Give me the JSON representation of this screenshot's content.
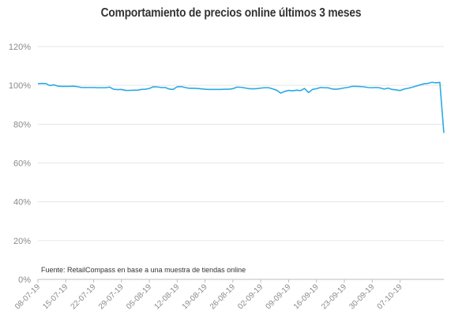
{
  "chart_data": {
    "type": "line",
    "title": "Comportamiento de precios online últimos 3 meses",
    "xlabel": "",
    "ylabel": "",
    "source_note": "Fuente: RetailCompass en base a una muestra de tiendas online",
    "ylim": [
      0,
      120
    ],
    "yticks": [
      "0%",
      "20%",
      "40%",
      "60%",
      "80%",
      "100%",
      "120%"
    ],
    "yticks_values": [
      0,
      20,
      40,
      60,
      80,
      100,
      120
    ],
    "xticks": [
      "08-07-19",
      "15-07-19",
      "22-07-19",
      "29-07-19",
      "05-08-19",
      "12-08-19",
      "19-08-19",
      "26-08-19",
      "02-09-19",
      "09-09-19",
      "16-09-19",
      "23-09-19",
      "30-09-19",
      "07-10-19"
    ],
    "xtick_day_index": [
      0,
      7,
      14,
      21,
      28,
      35,
      42,
      49,
      56,
      63,
      70,
      77,
      84,
      91
    ],
    "grid": true,
    "line_color": "#29abe2",
    "grid_color": "#e6e6e6",
    "axis_color": "#bdbdbd",
    "series": [
      {
        "values": [
          100.8,
          101.0,
          100.9,
          99.9,
          100.3,
          99.6,
          99.5,
          99.5,
          99.5,
          99.6,
          99.3,
          98.9,
          98.9,
          98.9,
          98.9,
          98.8,
          98.8,
          98.8,
          99.1,
          98.0,
          97.8,
          97.9,
          97.4,
          97.4,
          97.5,
          97.5,
          97.9,
          98.0,
          98.4,
          99.3,
          99.2,
          98.9,
          98.9,
          98.1,
          97.9,
          99.3,
          99.4,
          98.9,
          98.5,
          98.5,
          98.4,
          98.2,
          98.0,
          97.9,
          97.9,
          97.9,
          97.9,
          98.0,
          98.0,
          98.3,
          99.1,
          99.0,
          98.7,
          98.3,
          98.2,
          98.3,
          98.6,
          98.8,
          98.8,
          98.2,
          97.5,
          96.0,
          96.9,
          97.4,
          97.2,
          97.5,
          97.3,
          98.4,
          96.3,
          97.9,
          98.3,
          98.9,
          98.8,
          98.7,
          98.1,
          98.0,
          98.3,
          98.7,
          99.0,
          99.5,
          99.5,
          99.4,
          99.2,
          98.9,
          98.8,
          98.9,
          98.7,
          98.1,
          98.6,
          97.9,
          97.7,
          97.3,
          98.1,
          98.5,
          99.0,
          99.6,
          100.2,
          100.8,
          101.0,
          101.6,
          101.3,
          101.5,
          75.5
        ]
      }
    ]
  }
}
